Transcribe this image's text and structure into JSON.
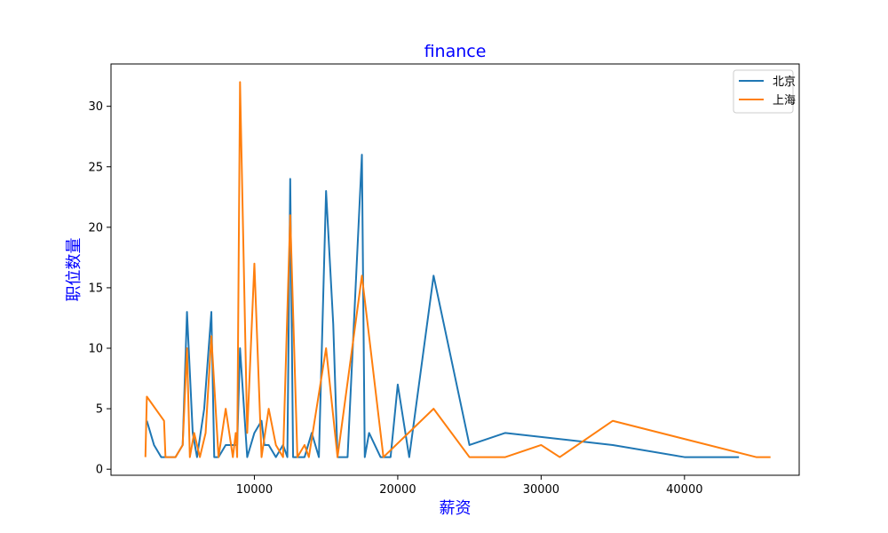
{
  "chart_data": {
    "type": "line",
    "title": "finance",
    "xlabel": "薪资",
    "ylabel": "职位数量",
    "label_color": "#0000ff",
    "xlim": [
      0,
      48000
    ],
    "ylim": [
      -0.5,
      33.5
    ],
    "x_ticks": [
      10000,
      20000,
      30000,
      40000
    ],
    "y_ticks": [
      0,
      5,
      10,
      15,
      20,
      25,
      30
    ],
    "legend_position": "top-right",
    "grid": false,
    "series": [
      {
        "name": "北京",
        "color": "#1f77b4",
        "points": [
          [
            2500,
            4
          ],
          [
            3000,
            2
          ],
          [
            3500,
            1
          ],
          [
            4000,
            1
          ],
          [
            4500,
            1
          ],
          [
            5000,
            2
          ],
          [
            5300,
            13
          ],
          [
            5700,
            3
          ],
          [
            6000,
            1
          ],
          [
            6500,
            5
          ],
          [
            7000,
            13
          ],
          [
            7200,
            1
          ],
          [
            7500,
            1
          ],
          [
            8000,
            2
          ],
          [
            8500,
            2
          ],
          [
            8800,
            2
          ],
          [
            9000,
            10
          ],
          [
            9500,
            1
          ],
          [
            10000,
            3
          ],
          [
            10500,
            4
          ],
          [
            10700,
            2
          ],
          [
            11000,
            2
          ],
          [
            11500,
            1
          ],
          [
            12000,
            2
          ],
          [
            12300,
            1
          ],
          [
            12500,
            24
          ],
          [
            12700,
            1
          ],
          [
            13000,
            1
          ],
          [
            13500,
            1
          ],
          [
            14000,
            3
          ],
          [
            14500,
            1
          ],
          [
            15000,
            23
          ],
          [
            15500,
            12
          ],
          [
            15800,
            1
          ],
          [
            16500,
            1
          ],
          [
            17500,
            26
          ],
          [
            17700,
            1
          ],
          [
            18000,
            3
          ],
          [
            18800,
            1
          ],
          [
            19500,
            1
          ],
          [
            20000,
            7
          ],
          [
            20800,
            1
          ],
          [
            22500,
            16
          ],
          [
            25000,
            2
          ],
          [
            27500,
            3
          ],
          [
            35000,
            2
          ],
          [
            40000,
            1
          ],
          [
            43800,
            1
          ]
        ]
      },
      {
        "name": "上海",
        "color": "#ff7f0e",
        "points": [
          [
            2400,
            1
          ],
          [
            2500,
            6
          ],
          [
            3700,
            4
          ],
          [
            3800,
            1
          ],
          [
            4500,
            1
          ],
          [
            5000,
            2
          ],
          [
            5300,
            10
          ],
          [
            5500,
            1
          ],
          [
            5800,
            3
          ],
          [
            6200,
            1
          ],
          [
            6600,
            3
          ],
          [
            7000,
            11
          ],
          [
            7500,
            1
          ],
          [
            8000,
            5
          ],
          [
            8500,
            1
          ],
          [
            8700,
            3
          ],
          [
            8800,
            1
          ],
          [
            9000,
            32
          ],
          [
            9500,
            3
          ],
          [
            10000,
            17
          ],
          [
            10500,
            1
          ],
          [
            11000,
            5
          ],
          [
            11500,
            2
          ],
          [
            12000,
            1
          ],
          [
            12500,
            21
          ],
          [
            13000,
            1
          ],
          [
            13500,
            2
          ],
          [
            13800,
            1
          ],
          [
            15000,
            10
          ],
          [
            15800,
            1
          ],
          [
            17500,
            16
          ],
          [
            19000,
            1
          ],
          [
            22500,
            5
          ],
          [
            25000,
            1
          ],
          [
            27500,
            1
          ],
          [
            30000,
            2
          ],
          [
            31300,
            1
          ],
          [
            35000,
            4
          ],
          [
            45000,
            1
          ],
          [
            46000,
            1
          ]
        ]
      }
    ]
  }
}
